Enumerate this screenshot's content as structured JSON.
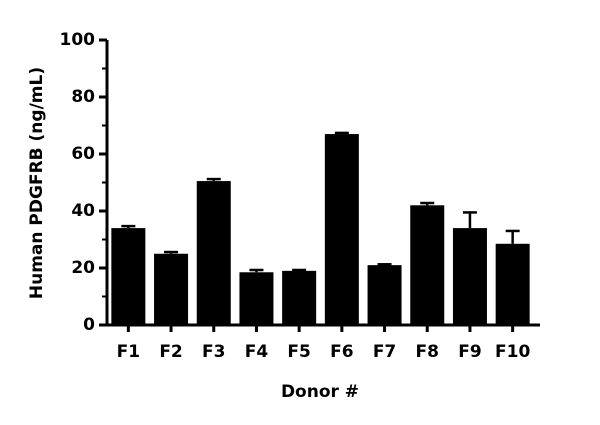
{
  "chart_data": {
    "type": "bar",
    "y_label": "Human PDGFRB (ng/mL)",
    "x_label": "Donor #",
    "categories": [
      "F1",
      "F2",
      "F3",
      "F4",
      "F5",
      "F6",
      "F7",
      "F8",
      "F9",
      "F10"
    ],
    "values": [
      34,
      25,
      50.5,
      18.5,
      19,
      67,
      21,
      42,
      34,
      28.5
    ],
    "errors": [
      0.7,
      0.6,
      0.7,
      0.8,
      0.3,
      0.4,
      0.3,
      0.8,
      5.5,
      4.5
    ],
    "color": "#000000",
    "ylim": [
      0,
      100
    ],
    "yticks": [
      0,
      20,
      40,
      60,
      80,
      100
    ],
    "minor_yticks": [
      10,
      30,
      50,
      70,
      90
    ],
    "grid": false
  }
}
